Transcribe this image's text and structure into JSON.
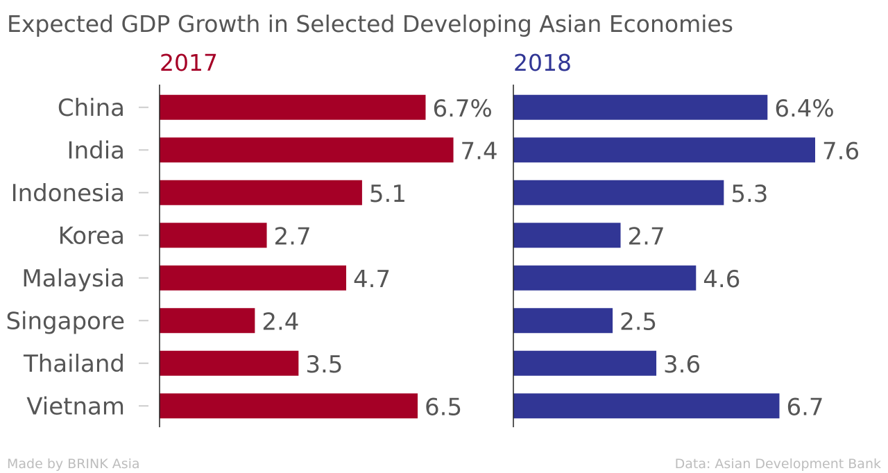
{
  "chart_data": {
    "type": "bar",
    "orientation": "horizontal",
    "title": "Expected GDP Growth in Selected Developing Asian Economies",
    "categories": [
      "China",
      "India",
      "Indonesia",
      "Korea",
      "Malaysia",
      "Singapore",
      "Thailand",
      "Vietnam"
    ],
    "series": [
      {
        "name": "2017",
        "color": "#a50026",
        "values": [
          6.7,
          7.4,
          5.1,
          2.7,
          4.7,
          2.4,
          3.5,
          6.5
        ],
        "value_labels": [
          "6.7%",
          "7.4",
          "5.1",
          "2.7",
          "4.7",
          "2.4",
          "3.5",
          "6.5"
        ]
      },
      {
        "name": "2018",
        "color": "#313695",
        "values": [
          6.4,
          7.6,
          5.3,
          2.7,
          4.6,
          2.5,
          3.6,
          6.7
        ],
        "value_labels": [
          "6.4%",
          "7.6",
          "5.3",
          "2.7",
          "4.6",
          "2.5",
          "3.6",
          "6.7"
        ]
      }
    ],
    "xlim": [
      0,
      7.6
    ],
    "grid": false,
    "legend": "panel titles above each panel"
  },
  "footer": {
    "credit": "Made by BRINK Asia",
    "source": "Data: Asian Development Bank"
  }
}
